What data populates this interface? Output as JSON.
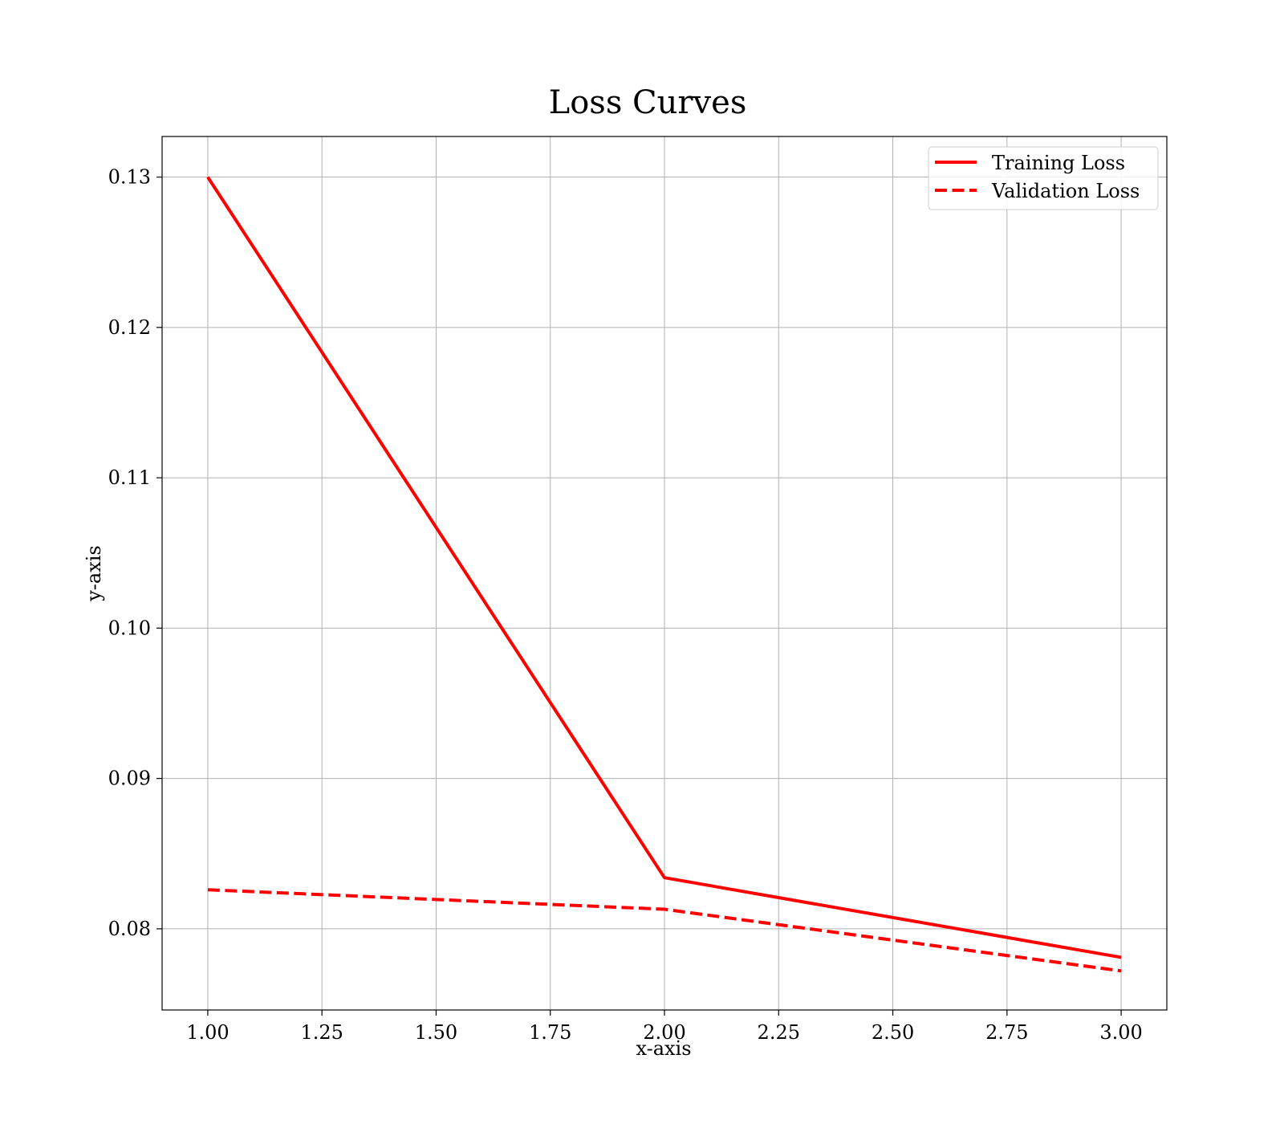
{
  "chart_data": {
    "type": "line",
    "title": "Loss Curves",
    "xlabel": "x-axis",
    "ylabel": "y-axis",
    "xlim": [
      0.9,
      3.1
    ],
    "ylim": [
      0.0746,
      0.1327
    ],
    "x_ticks": [
      1.0,
      1.25,
      1.5,
      1.75,
      2.0,
      2.25,
      2.5,
      2.75,
      3.0
    ],
    "x_tick_labels": [
      "1.00",
      "1.25",
      "1.50",
      "1.75",
      "2.00",
      "2.25",
      "2.50",
      "2.75",
      "3.00"
    ],
    "y_ticks": [
      0.08,
      0.09,
      0.1,
      0.11,
      0.12,
      0.13
    ],
    "y_tick_labels": [
      "0.08",
      "0.09",
      "0.10",
      "0.11",
      "0.12",
      "0.13"
    ],
    "grid": true,
    "legend_position": "top-right",
    "x": [
      1,
      2,
      3
    ],
    "series": [
      {
        "name": "Training Loss",
        "values": [
          0.13,
          0.0834,
          0.0781
        ],
        "color": "#ff0000",
        "style": "solid"
      },
      {
        "name": "Validation Loss",
        "values": [
          0.0826,
          0.0813,
          0.0772
        ],
        "color": "#ff0000",
        "style": "dashed"
      }
    ]
  }
}
